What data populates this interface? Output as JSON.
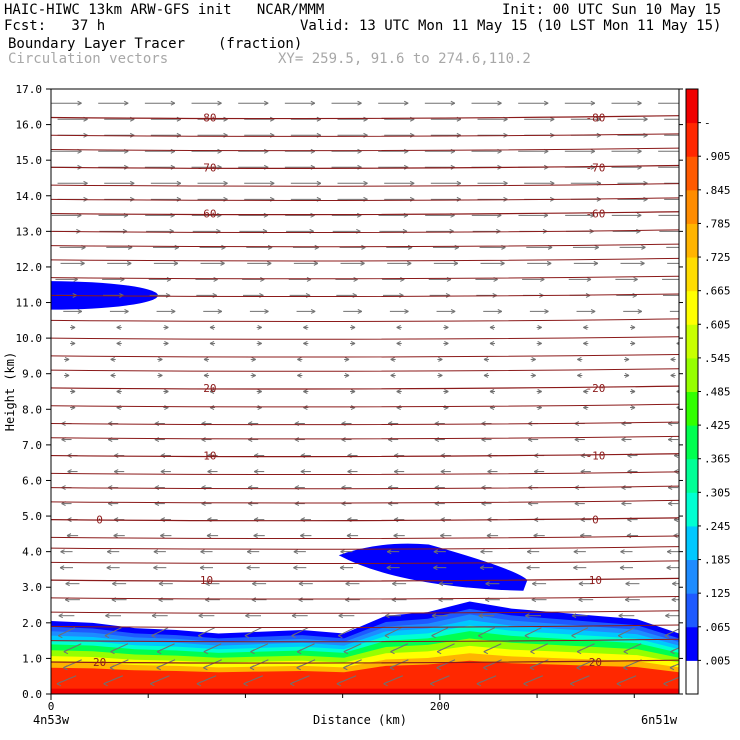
{
  "header": {
    "title_line": "HAIC-HIWC 13km ARW-GFS init   NCAR/MMM",
    "fcst_line": "Fcst:   37 h",
    "init_line": "Init: 00 UTC Sun 10 May 15",
    "valid_line": "Valid: 13 UTC Mon 11 May 15 (10 LST Mon 11 May 15)",
    "field_name": "Boundary Layer Tracer",
    "field_units": "(fraction)",
    "vector_label": "Circulation vectors",
    "xy_text": "XY= 259.5, 91.6 to 274.6,110.2"
  },
  "chart_data": {
    "type": "heatmap",
    "xlabel": "Distance (km)",
    "ylabel": "Height (km)",
    "xlim": [
      0,
      323
    ],
    "ylim": [
      0,
      17
    ],
    "x_ticks": [
      0,
      200
    ],
    "x_tick_labels": [
      "0",
      "200"
    ],
    "x_end_labels": [
      "4n53w",
      "6n51w"
    ],
    "y_ticks": [
      0,
      1,
      2,
      3,
      4,
      5,
      6,
      7,
      8,
      9,
      10,
      11,
      12,
      13,
      14,
      15,
      16,
      17
    ],
    "y_tick_labels": [
      "0.0",
      "1.0",
      "2.0",
      "3.0",
      "4.0",
      "5.0",
      "6.0",
      "7.0",
      "8.0",
      "9.0",
      "10.0",
      "11.0",
      "12.0",
      "13.0",
      "14.0",
      "15.0",
      "16.0",
      "17.0"
    ],
    "colorbar_levels": [
      ".005",
      ".065",
      ".125",
      ".185",
      ".245",
      ".305",
      ".365",
      ".425",
      ".485",
      ".545",
      ".605",
      ".665",
      ".725",
      ".785",
      ".845",
      ".905",
      "-"
    ],
    "colorbar_colors": [
      "#ffffff",
      "#0000ff",
      "#1e5aff",
      "#1e8cff",
      "#00c8ff",
      "#00ffd2",
      "#00ff96",
      "#00ff50",
      "#32ff00",
      "#96ff00",
      "#c8ff00",
      "#ffff00",
      "#ffdc00",
      "#ffb400",
      "#ff8c00",
      "#ff5a00",
      "#ff2800",
      "#f00000"
    ],
    "temperature_contours": [
      {
        "label": "-80",
        "z": 16.2
      },
      {
        "label": "-70",
        "z": 14.8
      },
      {
        "label": "-60",
        "z": 13.5
      },
      {
        "label": "-20",
        "z": 8.6
      },
      {
        "label": "-10",
        "z": 6.7
      },
      {
        "label": "0",
        "z": 4.9
      },
      {
        "label": "10",
        "z": 3.2
      },
      {
        "label": "20",
        "z": 0.9
      }
    ],
    "tracer_regions": [
      {
        "name": "boundary layer",
        "x": [
          0,
          323
        ],
        "z_top": [
          2.05,
          2.0,
          1.85,
          1.8,
          1.7,
          1.75,
          1.8,
          1.7,
          2.2,
          2.3,
          2.6,
          2.4,
          2.3,
          2.2,
          2.1,
          1.7
        ],
        "value": 0.95
      },
      {
        "name": "upper patch",
        "x": [
          0,
          55
        ],
        "z_range": [
          10.8,
          11.6
        ],
        "value": 0.07
      },
      {
        "name": "mid patch",
        "x": [
          148,
          245
        ],
        "z_range": [
          2.9,
          4.2
        ],
        "value": 0.07
      }
    ]
  },
  "colors": {
    "contour": "#8b1a1a",
    "vector": "#707070",
    "frame": "#000000"
  }
}
